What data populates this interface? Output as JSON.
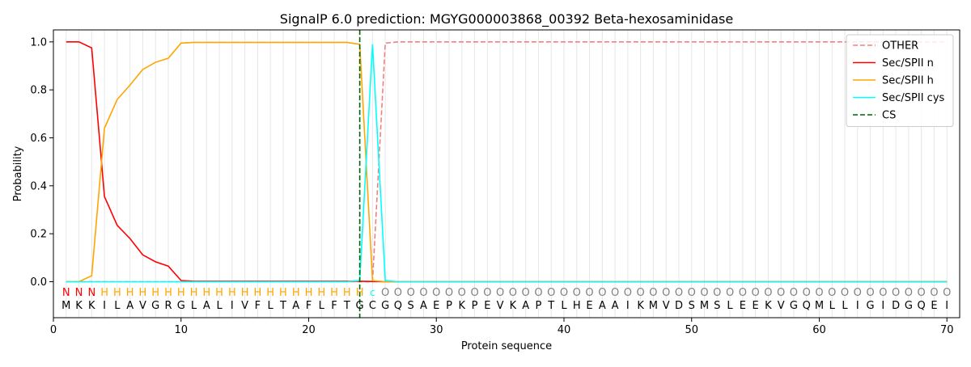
{
  "chart_data": {
    "type": "line",
    "title": "SignalP 6.0 prediction: MGYG000003868_00392 Beta-hexosaminidase",
    "xlabel": "Protein sequence",
    "ylabel": "Probability",
    "xlim": [
      0,
      71
    ],
    "ylim": [
      -0.15,
      1.05
    ],
    "x_ticks": [
      0,
      10,
      20,
      30,
      40,
      50,
      60,
      70
    ],
    "y_ticks": [
      0.0,
      0.2,
      0.4,
      0.6,
      0.8,
      1.0
    ],
    "x_tick_labels": [
      "0",
      "10",
      "20",
      "30",
      "40",
      "50",
      "60",
      "70"
    ],
    "y_tick_labels": [
      "0.0",
      "0.2",
      "0.4",
      "0.6",
      "0.8",
      "1.0"
    ],
    "legend_position": "top-right",
    "sequence": [
      "M",
      "K",
      "K",
      "I",
      "L",
      "A",
      "V",
      "G",
      "R",
      "G",
      "L",
      "A",
      "L",
      "I",
      "V",
      "F",
      "L",
      "T",
      "A",
      "F",
      "L",
      "F",
      "T",
      "G",
      "C",
      "G",
      "Q",
      "S",
      "A",
      "E",
      "P",
      "K",
      "P",
      "E",
      "V",
      "K",
      "A",
      "P",
      "T",
      "L",
      "H",
      "E",
      "A",
      "A",
      "I",
      "K",
      "M",
      "V",
      "D",
      "S",
      "M",
      "S",
      "L",
      "E",
      "E",
      "K",
      "V",
      "G",
      "Q",
      "M",
      "L",
      "L",
      "I",
      "G",
      "I",
      "D",
      "G",
      "Q",
      "E",
      "I"
    ],
    "labels": [
      "N",
      "N",
      "N",
      "H",
      "H",
      "H",
      "H",
      "H",
      "H",
      "H",
      "H",
      "H",
      "H",
      "H",
      "H",
      "H",
      "H",
      "H",
      "H",
      "H",
      "H",
      "H",
      "H",
      "H",
      "c",
      "O",
      "O",
      "O",
      "O",
      "O",
      "O",
      "O",
      "O",
      "O",
      "O",
      "O",
      "O",
      "O",
      "O",
      "O",
      "O",
      "O",
      "O",
      "O",
      "O",
      "O",
      "O",
      "O",
      "O",
      "O",
      "O",
      "O",
      "O",
      "O",
      "O",
      "O",
      "O",
      "O",
      "O",
      "O",
      "O",
      "O",
      "O",
      "O",
      "O",
      "O",
      "O",
      "O",
      "O",
      "O"
    ],
    "label_colors": {
      "N": "#ff0000",
      "H": "#ffa500",
      "c": "#00ffff",
      "O": "#808080"
    },
    "series": [
      {
        "name": "OTHER",
        "color": "#f08080",
        "dash": "dashed",
        "values": [
          0,
          0,
          0,
          0,
          0,
          0,
          0,
          0,
          0,
          0,
          0,
          0,
          0,
          0,
          0,
          0,
          0,
          0,
          0,
          0,
          0,
          0,
          0,
          0,
          0,
          0.995,
          1,
          1,
          1,
          1,
          1,
          1,
          1,
          1,
          1,
          1,
          1,
          1,
          1,
          1,
          1,
          1,
          1,
          1,
          1,
          1,
          1,
          1,
          1,
          1,
          1,
          1,
          1,
          1,
          1,
          1,
          1,
          1,
          1,
          1,
          1,
          1,
          1,
          1,
          1,
          1,
          1,
          1,
          1,
          1
        ]
      },
      {
        "name": "Sec/SPII n",
        "color": "#ff0000",
        "dash": "solid",
        "values": [
          1.0,
          1.0,
          0.975,
          0.355,
          0.235,
          0.18,
          0.112,
          0.083,
          0.065,
          0.005,
          0.002,
          0.002,
          0.002,
          0.002,
          0.002,
          0.002,
          0.002,
          0.002,
          0.002,
          0.002,
          0.002,
          0.002,
          0.002,
          0.002,
          0.001,
          0,
          0,
          0,
          0,
          0,
          0,
          0,
          0,
          0,
          0,
          0,
          0,
          0,
          0,
          0,
          0,
          0,
          0,
          0,
          0,
          0,
          0,
          0,
          0,
          0,
          0,
          0,
          0,
          0,
          0,
          0,
          0,
          0,
          0,
          0,
          0,
          0,
          0,
          0,
          0,
          0,
          0,
          0,
          0,
          0
        ]
      },
      {
        "name": "Sec/SPII h",
        "color": "#ffa500",
        "dash": "solid",
        "values": [
          0.0,
          0.0,
          0.025,
          0.64,
          0.76,
          0.82,
          0.885,
          0.915,
          0.932,
          0.995,
          0.998,
          0.998,
          0.998,
          0.998,
          0.998,
          0.998,
          0.998,
          0.998,
          0.998,
          0.998,
          0.998,
          0.998,
          0.998,
          0.99,
          0.005,
          0,
          0,
          0,
          0,
          0,
          0,
          0,
          0,
          0,
          0,
          0,
          0,
          0,
          0,
          0,
          0,
          0,
          0,
          0,
          0,
          0,
          0,
          0,
          0,
          0,
          0,
          0,
          0,
          0,
          0,
          0,
          0,
          0,
          0,
          0,
          0,
          0,
          0,
          0,
          0,
          0,
          0,
          0,
          0,
          0
        ]
      },
      {
        "name": "Sec/SPII cys",
        "color": "#00ffff",
        "dash": "solid",
        "values": [
          0,
          0,
          0,
          0,
          0,
          0,
          0,
          0,
          0,
          0,
          0,
          0,
          0,
          0,
          0,
          0,
          0,
          0,
          0,
          0,
          0,
          0,
          0,
          0.005,
          0.99,
          0.005,
          0,
          0,
          0,
          0,
          0,
          0,
          0,
          0,
          0,
          0,
          0,
          0,
          0,
          0,
          0,
          0,
          0,
          0,
          0,
          0,
          0,
          0,
          0,
          0,
          0,
          0,
          0,
          0,
          0,
          0,
          0,
          0,
          0,
          0,
          0,
          0,
          0,
          0,
          0,
          0,
          0,
          0,
          0,
          0
        ]
      }
    ],
    "cs": {
      "name": "CS",
      "x": 24,
      "color": "#006400",
      "dash": "dashed"
    }
  }
}
